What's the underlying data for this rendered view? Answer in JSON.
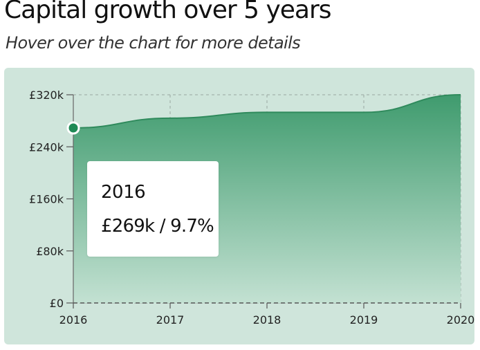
{
  "title": "Capital growth over 5 years",
  "subtitle": "Hover over the chart for more details",
  "tooltip": {
    "year": "2016",
    "value": "£269k / 9.7%"
  },
  "colors": {
    "panel_background": "#cfe5db",
    "area_top": "#3f9b6e",
    "area_bottom": "#c3e1d2",
    "line": "#2f8a5c",
    "marker": "#1f8a55"
  },
  "chart_data": {
    "type": "area",
    "title": "Capital growth over 5 years",
    "x": [
      "2016",
      "2017",
      "2018",
      "2019",
      "2020"
    ],
    "xlabel": "",
    "ylabel": "",
    "series": [
      {
        "values": [
          269,
          284,
          293,
          293,
          320
        ]
      }
    ],
    "y_unit": "£k",
    "ylim": [
      0,
      320
    ],
    "yticks": [
      0,
      80,
      160,
      240,
      320
    ],
    "ytick_labels": [
      "£0",
      "£80k",
      "£160k",
      "£240k",
      "£320k"
    ],
    "grid": true,
    "highlighted_point": {
      "x": "2016",
      "value": 269
    }
  }
}
